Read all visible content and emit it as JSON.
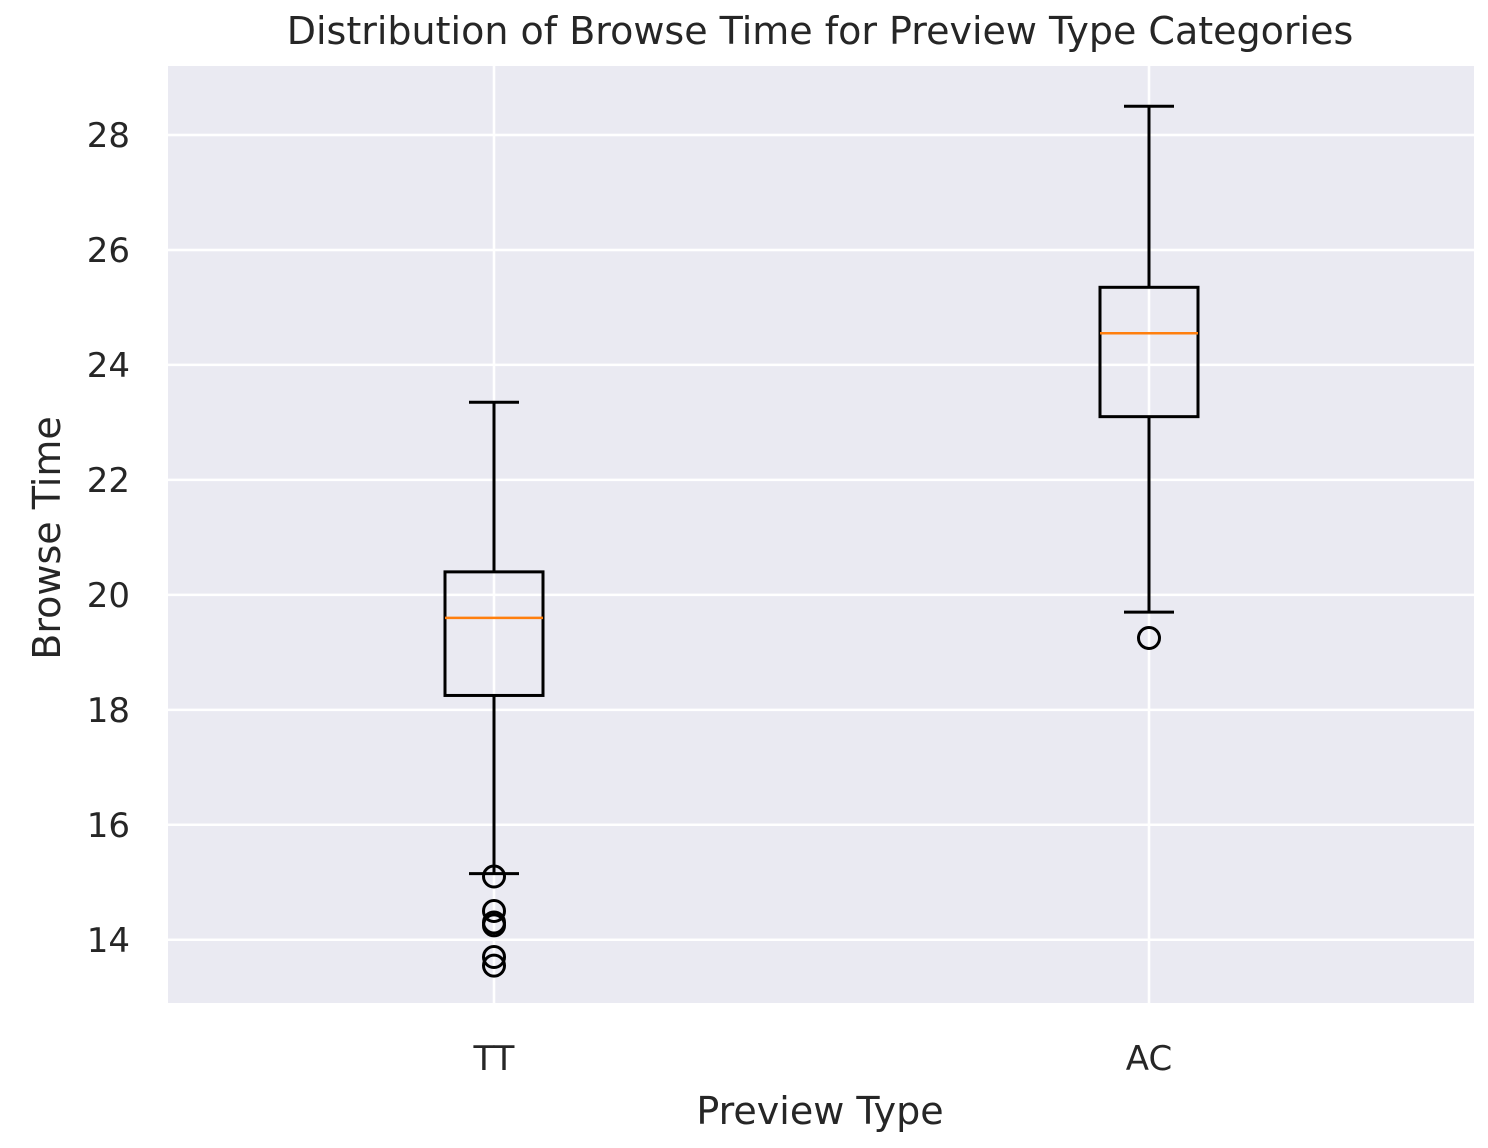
{
  "chart_data": {
    "type": "box",
    "title": "Distribution of Browse Time for Preview Type Categories",
    "xlabel": "Preview Type",
    "ylabel": "Browse Time",
    "categories": [
      "TT",
      "AC"
    ],
    "ylim": [
      12.9,
      29.2
    ],
    "yticks": [
      14,
      16,
      18,
      20,
      22,
      24,
      26,
      28
    ],
    "grid": true,
    "legend": "none",
    "boxes": [
      {
        "category": "TT",
        "whisker_low": 15.15,
        "q1": 18.25,
        "median": 19.6,
        "q3": 20.4,
        "whisker_high": 23.35,
        "outliers": [
          15.1,
          14.5,
          14.3,
          14.25,
          13.7,
          13.55
        ]
      },
      {
        "category": "AC",
        "whisker_low": 19.7,
        "q1": 23.1,
        "median": 24.55,
        "q3": 25.35,
        "whisker_high": 28.5,
        "outliers": [
          19.25
        ]
      }
    ],
    "colors": {
      "plot_background": "#eaeaf2",
      "grid": "#ffffff",
      "box_edge": "#000000",
      "median": "#ff7f0e",
      "text": "#262626"
    }
  }
}
